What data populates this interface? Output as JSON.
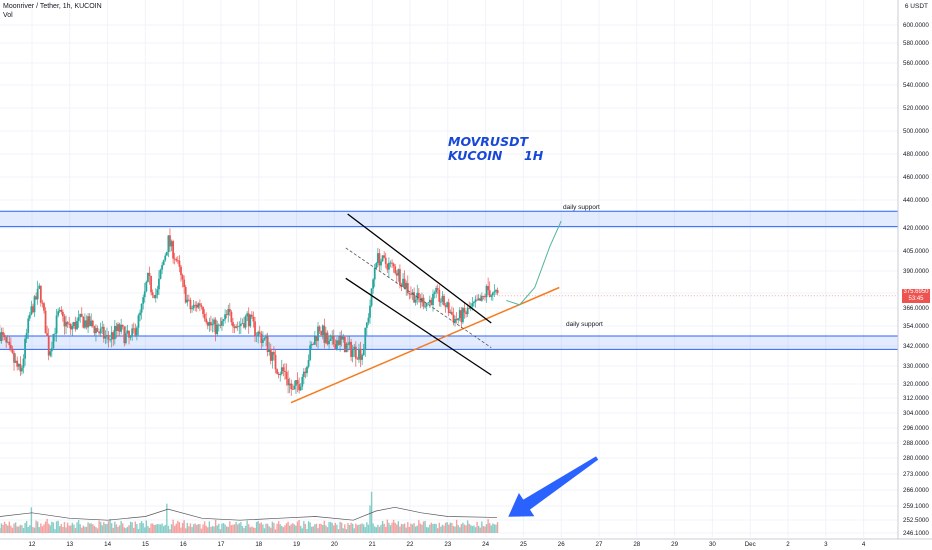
{
  "header": {
    "symbol": "Moonriver / Tether, 1h, KUCOIN",
    "volume_label": "Vol",
    "currency_unit": "USDT",
    "currency_badge": "6"
  },
  "watermark": {
    "line1": "MOVRUSDT",
    "line2": "KUCOIN     1H"
  },
  "zones": [
    {
      "label": "daily support",
      "low": 421,
      "high": 432,
      "color": "#2962ff"
    },
    {
      "label": "daily support",
      "low": 340,
      "high": 348,
      "color": "#2962ff"
    }
  ],
  "last_price": {
    "value": "375.6950",
    "countdown": "53:45",
    "color": "#ef5350"
  },
  "colors": {
    "up": "#26a69a",
    "down": "#ef5350",
    "trendline": "#f57c1f",
    "channel": "#000000",
    "projection": "#52b69a",
    "arrow": "#2962ff"
  },
  "chart_data": {
    "type": "candlestick",
    "y_ticks": [
      246,
      252.5,
      259,
      266,
      273,
      280,
      288,
      296,
      304,
      312,
      320,
      330,
      342,
      354,
      366,
      378,
      390,
      405,
      420,
      440,
      460,
      480,
      500,
      520,
      540,
      560,
      580,
      600
    ],
    "y_tick_labels": [
      "246.1000",
      "252.5000",
      "259.1000",
      "266.0000",
      "273.0000",
      "280.0000",
      "288.0000",
      "296.0000",
      "304.0000",
      "312.0000",
      "320.0000",
      "330.0000",
      "342.0000",
      "354.0000",
      "366.0000",
      "378.0000",
      "390.0000",
      "405.0000",
      "420.0000",
      "440.0000",
      "460.0000",
      "480.0000",
      "500.0000",
      "520.0000",
      "540.0000",
      "560.0000",
      "580.0000",
      "600.0000"
    ],
    "ylim": [
      243,
      615
    ],
    "x_ticks": [
      "12",
      "13",
      "14",
      "15",
      "16",
      "17",
      "18",
      "19",
      "20",
      "21",
      "22",
      "23",
      "24",
      "25",
      "26",
      "27",
      "28",
      "29",
      "30",
      "Dec",
      "2",
      "3",
      "4"
    ],
    "x_tick_days": [
      12,
      13,
      14,
      15,
      16,
      17,
      18,
      19,
      20,
      21,
      22,
      23,
      24,
      25,
      26,
      27,
      28,
      29,
      30,
      31,
      32,
      33,
      34
    ],
    "x_range_days": [
      11.15,
      34.55
    ],
    "price_path": [
      [
        11.15,
        350
      ],
      [
        11.45,
        336
      ],
      [
        11.7,
        325
      ],
      [
        11.95,
        362
      ],
      [
        12.2,
        380
      ],
      [
        12.45,
        338
      ],
      [
        12.7,
        362
      ],
      [
        13.0,
        352
      ],
      [
        13.3,
        358
      ],
      [
        13.6,
        354
      ],
      [
        14.0,
        346
      ],
      [
        14.3,
        352
      ],
      [
        14.6,
        345
      ],
      [
        14.85,
        360
      ],
      [
        15.05,
        385
      ],
      [
        15.3,
        376
      ],
      [
        15.6,
        412
      ],
      [
        15.8,
        400
      ],
      [
        16.0,
        380
      ],
      [
        16.2,
        365
      ],
      [
        16.45,
        370
      ],
      [
        16.7,
        355
      ],
      [
        16.95,
        352
      ],
      [
        17.2,
        362
      ],
      [
        17.45,
        354
      ],
      [
        17.7,
        360
      ],
      [
        17.95,
        350
      ],
      [
        18.2,
        344
      ],
      [
        18.45,
        330
      ],
      [
        18.7,
        326
      ],
      [
        18.9,
        315
      ],
      [
        19.1,
        322
      ],
      [
        19.35,
        338
      ],
      [
        19.6,
        354
      ],
      [
        19.85,
        342
      ],
      [
        20.1,
        346
      ],
      [
        20.4,
        340
      ],
      [
        20.75,
        338
      ],
      [
        20.95,
        370
      ],
      [
        21.1,
        400
      ],
      [
        21.35,
        396
      ],
      [
        21.6,
        392
      ],
      [
        21.9,
        382
      ],
      [
        22.15,
        374
      ],
      [
        22.45,
        370
      ],
      [
        22.7,
        376
      ],
      [
        22.95,
        368
      ],
      [
        23.2,
        358
      ],
      [
        23.45,
        362
      ],
      [
        23.7,
        368
      ],
      [
        23.9,
        372
      ],
      [
        24.05,
        380
      ],
      [
        24.2,
        376
      ],
      [
        24.35,
        375.7
      ]
    ],
    "volume_pattern": [
      4,
      6,
      5,
      8,
      7,
      5,
      9,
      6,
      4,
      7,
      10,
      6,
      5,
      8,
      6,
      4,
      7,
      9,
      5,
      6
    ],
    "volume_spikes": [
      [
        21.0,
        110
      ],
      [
        21.0,
        45
      ],
      [
        15.55,
        32
      ],
      [
        20.95,
        30
      ],
      [
        12.0,
        28
      ]
    ],
    "volume_max": 120,
    "volume_ma": [
      [
        11.15,
        18
      ],
      [
        12,
        22
      ],
      [
        13,
        16
      ],
      [
        14,
        14
      ],
      [
        15,
        18
      ],
      [
        15.6,
        26
      ],
      [
        16.5,
        16
      ],
      [
        17.5,
        14
      ],
      [
        18.5,
        16
      ],
      [
        19.5,
        18
      ],
      [
        20.5,
        14
      ],
      [
        21.1,
        24
      ],
      [
        21.6,
        28
      ],
      [
        22.3,
        22
      ],
      [
        23,
        18
      ],
      [
        24.3,
        17
      ]
    ],
    "support_line": [
      [
        18.85,
        309.5
      ],
      [
        25.95,
        381
      ]
    ],
    "channel_upper": [
      [
        20.35,
        430
      ],
      [
        24.15,
        356
      ]
    ],
    "channel_lower": [
      [
        20.3,
        386
      ],
      [
        24.15,
        325
      ]
    ],
    "channel_mid_dashed": [
      [
        20.3,
        407
      ],
      [
        24.15,
        341
      ]
    ],
    "projection": [
      [
        24.55,
        372
      ],
      [
        24.9,
        368.5
      ],
      [
        25.3,
        381
      ],
      [
        25.7,
        408
      ],
      [
        26.0,
        425
      ]
    ],
    "arrow": [
      [
        26.95,
        280
      ],
      [
        24.6,
        254
      ]
    ]
  }
}
